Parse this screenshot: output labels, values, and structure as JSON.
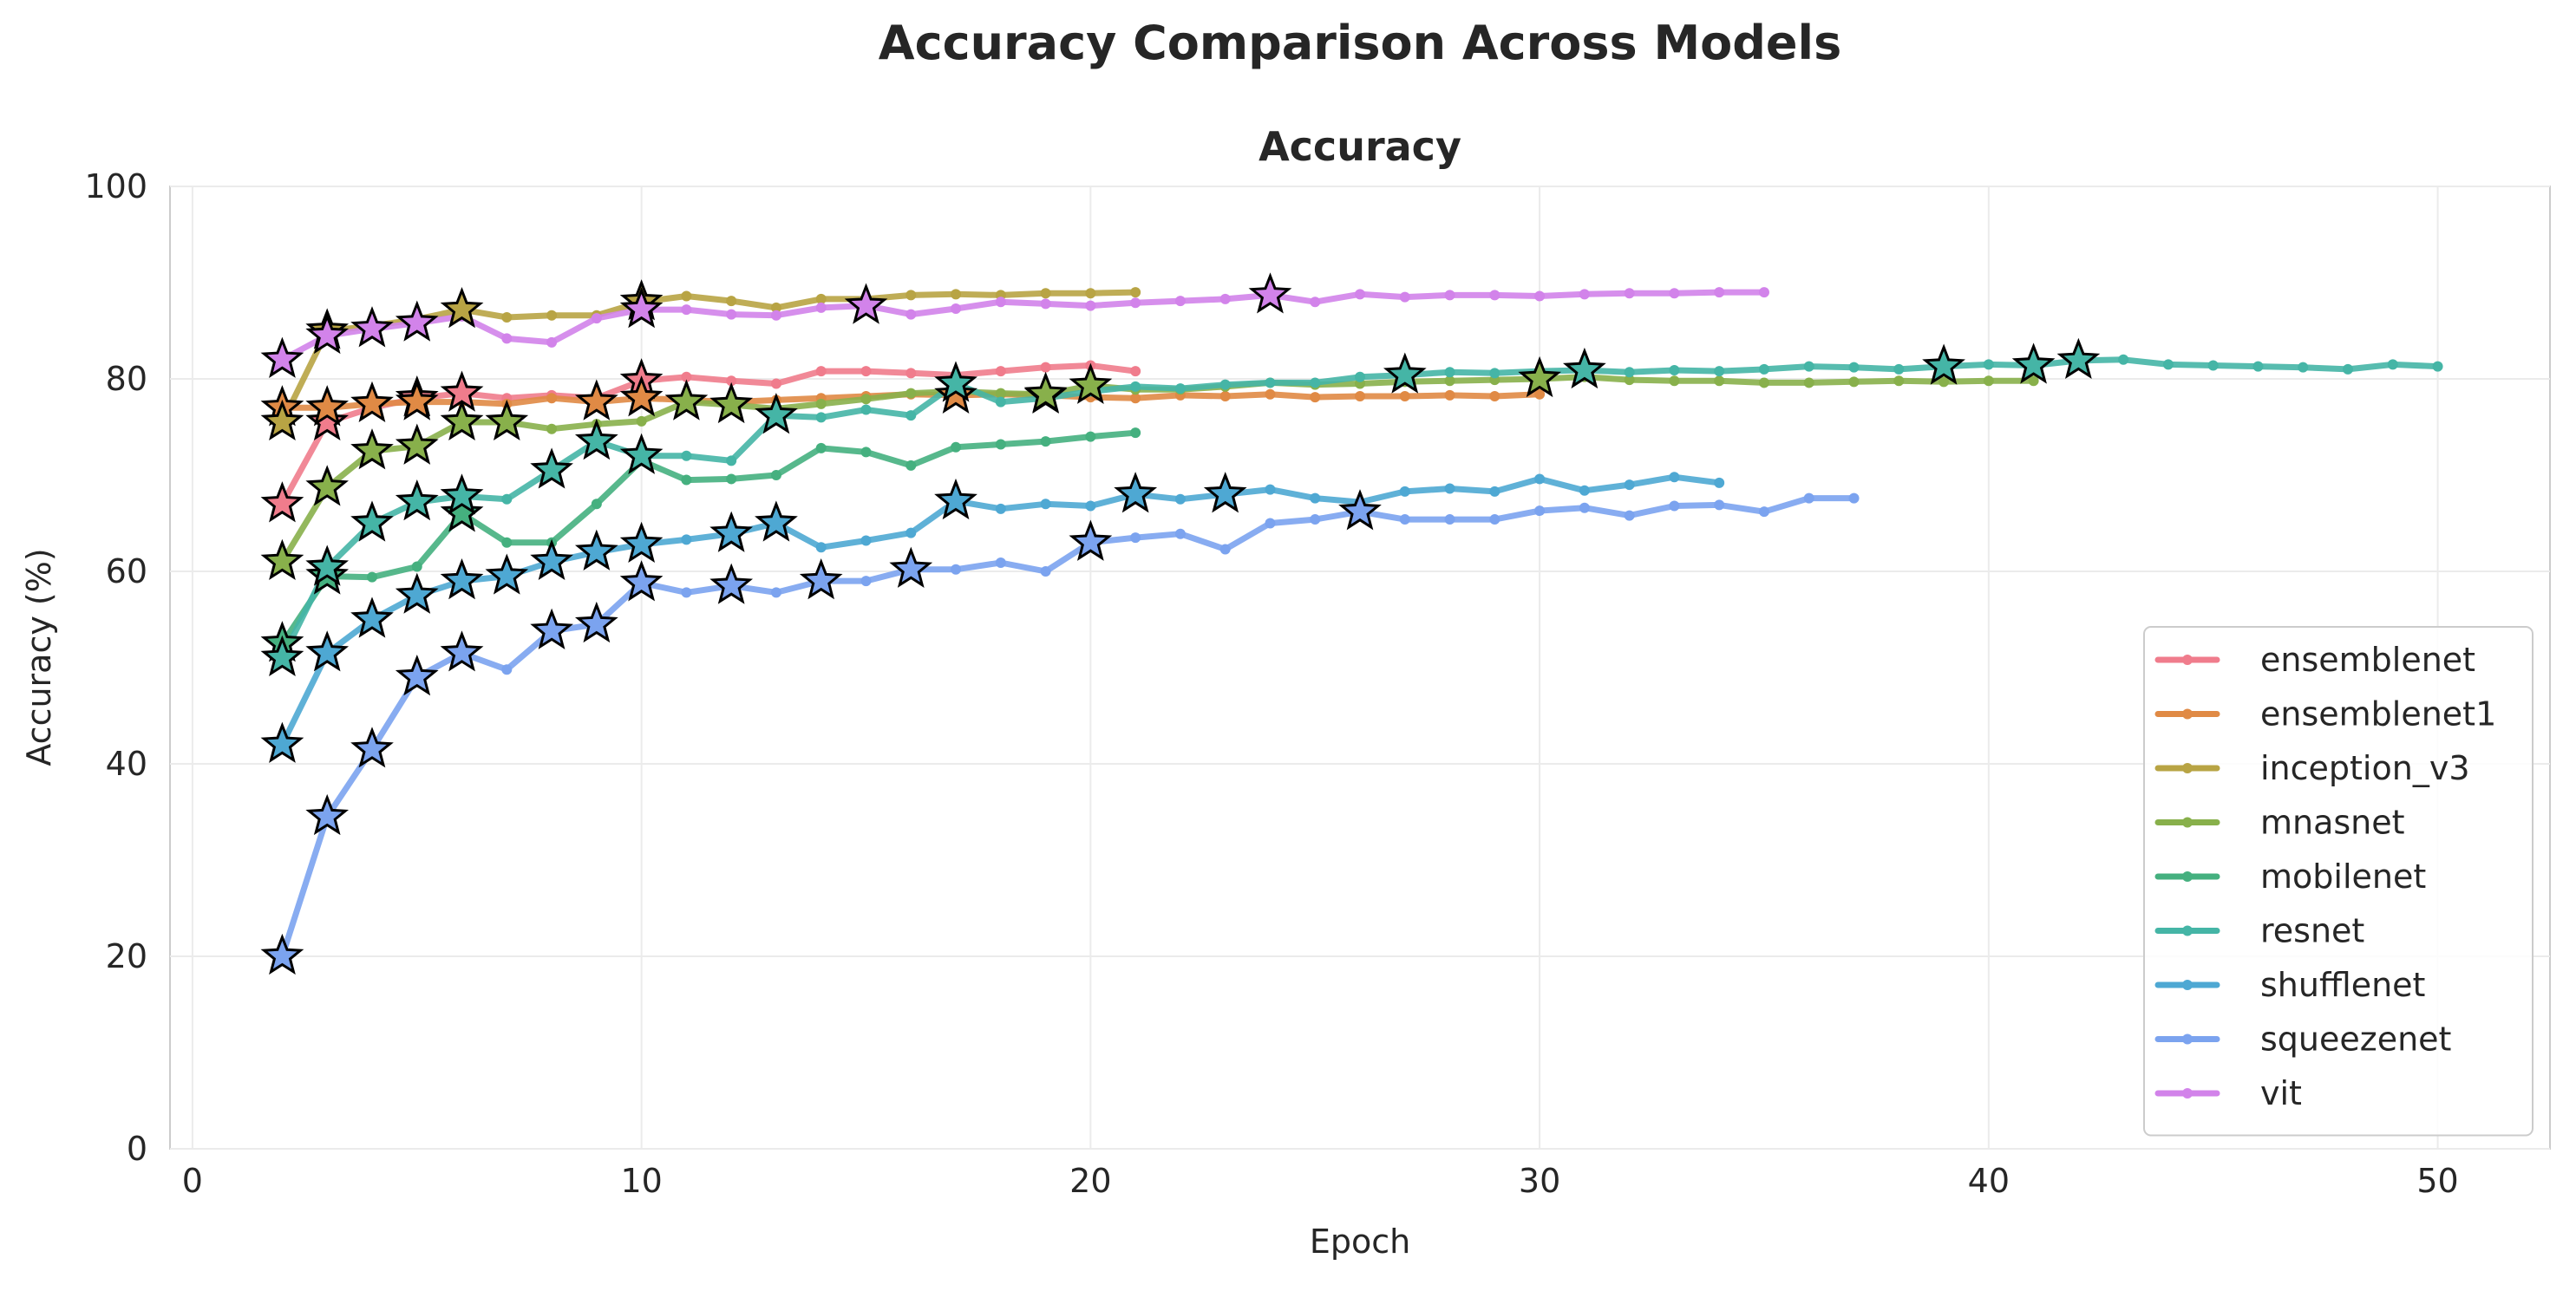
{
  "chart_data": {
    "type": "line",
    "title": "Accuracy Comparison Across Models",
    "subtitle": "Accuracy",
    "xlabel": "Epoch",
    "ylabel": "Accuracy (%)",
    "xlim": [
      -0.5,
      52.5
    ],
    "ylim": [
      0,
      100
    ],
    "xticks": [
      0,
      10,
      20,
      30,
      40,
      50
    ],
    "yticks": [
      0,
      20,
      40,
      60,
      80,
      100
    ],
    "grid": true,
    "legend_position": "lower right",
    "series": [
      {
        "name": "ensemblenet",
        "color": "#f07c8c",
        "x": [
          2,
          3,
          4,
          5,
          6,
          7,
          8,
          9,
          10,
          11,
          12,
          13,
          14,
          15,
          16,
          17,
          18,
          19,
          20,
          21
        ],
        "y": [
          67.0,
          75.5,
          77.0,
          78.0,
          78.5,
          78.0,
          78.3,
          78.0,
          79.8,
          80.2,
          79.8,
          79.5,
          80.8,
          80.8,
          80.6,
          80.4,
          80.8,
          81.2,
          81.4,
          80.8
        ],
        "stars": [
          2,
          3,
          5,
          6,
          10
        ]
      },
      {
        "name": "ensemblenet1",
        "color": "#e08a45",
        "x": [
          2,
          3,
          4,
          5,
          6,
          7,
          8,
          9,
          10,
          11,
          12,
          13,
          14,
          15,
          16,
          17,
          18,
          19,
          20,
          21,
          22,
          23,
          24,
          25,
          26,
          27,
          28,
          29,
          30
        ],
        "y": [
          77.0,
          77.0,
          77.4,
          77.6,
          77.6,
          77.4,
          78.0,
          77.6,
          78.0,
          77.8,
          77.6,
          77.8,
          78.0,
          78.2,
          78.4,
          78.3,
          78.4,
          78.3,
          78.1,
          78.0,
          78.3,
          78.2,
          78.4,
          78.1,
          78.2,
          78.2,
          78.3,
          78.2,
          78.4
        ],
        "stars": [
          2,
          3,
          4,
          5,
          9,
          10,
          17,
          19
        ]
      },
      {
        "name": "inception_v3",
        "color": "#b8a444",
        "x": [
          2,
          3,
          4,
          5,
          6,
          7,
          8,
          9,
          10,
          11,
          12,
          13,
          14,
          15,
          16,
          17,
          18,
          19,
          20,
          21
        ],
        "y": [
          75.5,
          85.0,
          85.5,
          86.2,
          87.2,
          86.4,
          86.6,
          86.6,
          88.0,
          88.6,
          88.1,
          87.4,
          88.3,
          88.3,
          88.7,
          88.8,
          88.7,
          88.9,
          88.9,
          89.0
        ],
        "stars": [
          2,
          3,
          6,
          10
        ]
      },
      {
        "name": "mnasnet",
        "color": "#88b04b",
        "x": [
          2,
          3,
          4,
          5,
          6,
          7,
          8,
          9,
          10,
          11,
          12,
          13,
          14,
          15,
          16,
          17,
          18,
          19,
          20,
          21,
          22,
          23,
          24,
          25,
          26,
          27,
          28,
          29,
          30,
          31,
          32,
          33,
          34,
          35,
          36,
          37,
          38,
          39,
          40,
          41
        ],
        "y": [
          61.0,
          68.7,
          72.5,
          73.0,
          75.5,
          75.5,
          74.8,
          75.3,
          75.6,
          77.6,
          77.3,
          76.9,
          77.4,
          77.9,
          78.5,
          78.7,
          78.5,
          78.4,
          79.3,
          78.9,
          78.9,
          79.2,
          79.6,
          79.4,
          79.5,
          79.7,
          79.8,
          79.9,
          80.0,
          80.2,
          79.9,
          79.8,
          79.8,
          79.6,
          79.6,
          79.7,
          79.8,
          79.7,
          79.8,
          79.8
        ],
        "stars": [
          2,
          3,
          4,
          5,
          6,
          7,
          11,
          12,
          19,
          20,
          30
        ]
      },
      {
        "name": "mobilenet",
        "color": "#45b07f",
        "x": [
          2,
          3,
          4,
          5,
          6,
          7,
          8,
          9,
          10,
          11,
          12,
          13,
          14,
          15,
          16,
          17,
          18,
          19,
          20,
          21
        ],
        "y": [
          52.5,
          59.5,
          59.4,
          60.5,
          66.0,
          63.0,
          63.0,
          67.0,
          71.5,
          69.5,
          69.6,
          70.0,
          72.8,
          72.4,
          71.0,
          72.9,
          73.2,
          73.5,
          74.0,
          74.4
        ],
        "stars": [
          2,
          3,
          6
        ]
      },
      {
        "name": "resnet",
        "color": "#45b5a6",
        "x": [
          2,
          3,
          4,
          5,
          6,
          7,
          8,
          9,
          10,
          11,
          12,
          13,
          14,
          15,
          16,
          17,
          18,
          19,
          20,
          21,
          22,
          23,
          24,
          25,
          26,
          27,
          28,
          29,
          30,
          31,
          32,
          33,
          34,
          35,
          36,
          37,
          38,
          39,
          40,
          41,
          42,
          43,
          44,
          45,
          46,
          47,
          48,
          49,
          50
        ],
        "y": [
          51.0,
          60.4,
          65.0,
          67.2,
          67.8,
          67.5,
          70.5,
          73.5,
          72.0,
          72.0,
          71.5,
          76.2,
          76.0,
          76.8,
          76.2,
          79.5,
          77.6,
          78.0,
          78.7,
          79.2,
          79.0,
          79.4,
          79.6,
          79.6,
          80.2,
          80.4,
          80.7,
          80.6,
          80.8,
          80.9,
          80.7,
          80.9,
          80.8,
          81.0,
          81.3,
          81.2,
          81.0,
          81.3,
          81.5,
          81.4,
          81.9,
          82.0,
          81.5,
          81.4,
          81.3,
          81.2,
          81.0,
          81.5,
          81.3
        ],
        "stars": [
          2,
          3,
          4,
          5,
          6,
          8,
          9,
          10,
          13,
          17,
          27,
          31,
          39,
          41,
          42
        ]
      },
      {
        "name": "shufflenet",
        "color": "#4ea8d3",
        "x": [
          2,
          3,
          4,
          5,
          6,
          7,
          8,
          9,
          10,
          11,
          12,
          13,
          14,
          15,
          16,
          17,
          18,
          19,
          20,
          21,
          22,
          23,
          24,
          25,
          26,
          27,
          28,
          29,
          30,
          31,
          32,
          33,
          34
        ],
        "y": [
          42.0,
          51.5,
          55.0,
          57.5,
          59.0,
          59.5,
          61.0,
          62.0,
          62.8,
          63.3,
          63.9,
          65.0,
          62.5,
          63.2,
          64.0,
          67.3,
          66.5,
          67.0,
          66.8,
          68.0,
          67.5,
          68.0,
          68.5,
          67.6,
          67.2,
          68.3,
          68.6,
          68.3,
          69.6,
          68.4,
          69.0,
          69.8,
          69.2
        ],
        "stars": [
          2,
          3,
          4,
          5,
          6,
          7,
          8,
          9,
          10,
          12,
          13,
          17,
          21,
          23
        ]
      },
      {
        "name": "squeezenet",
        "color": "#7ba3ef",
        "x": [
          2,
          3,
          4,
          5,
          6,
          7,
          8,
          9,
          10,
          11,
          12,
          13,
          14,
          15,
          16,
          17,
          18,
          19,
          20,
          21,
          22,
          23,
          24,
          25,
          26,
          27,
          28,
          29,
          30,
          31,
          32,
          33,
          34,
          35,
          36,
          37
        ],
        "y": [
          20.0,
          34.5,
          41.5,
          49.0,
          51.5,
          49.8,
          53.8,
          54.5,
          58.8,
          57.8,
          58.5,
          57.8,
          59.0,
          59.0,
          60.2,
          60.2,
          60.9,
          60.0,
          63.0,
          63.5,
          63.9,
          62.3,
          65.0,
          65.4,
          66.2,
          65.4,
          65.4,
          65.4,
          66.3,
          66.6,
          65.8,
          66.8,
          66.9,
          66.2,
          67.6,
          67.6
        ],
        "stars": [
          2,
          3,
          4,
          5,
          6,
          8,
          9,
          10,
          12,
          14,
          16,
          20,
          26
        ]
      },
      {
        "name": "vit",
        "color": "#d283ea",
        "x": [
          2,
          3,
          4,
          5,
          6,
          7,
          8,
          9,
          10,
          11,
          12,
          13,
          14,
          15,
          16,
          17,
          18,
          19,
          20,
          21,
          22,
          23,
          24,
          25,
          26,
          27,
          28,
          29,
          30,
          31,
          32,
          33,
          34,
          35
        ],
        "y": [
          82.0,
          84.5,
          85.2,
          85.8,
          86.5,
          84.2,
          83.8,
          86.3,
          87.2,
          87.2,
          86.7,
          86.6,
          87.4,
          87.6,
          86.7,
          87.3,
          88.0,
          87.8,
          87.6,
          87.9,
          88.1,
          88.3,
          88.7,
          88.0,
          88.8,
          88.5,
          88.7,
          88.7,
          88.6,
          88.8,
          88.9,
          88.9,
          89.0,
          89.0
        ],
        "stars": [
          2,
          3,
          4,
          5,
          10,
          15,
          24
        ]
      }
    ]
  }
}
